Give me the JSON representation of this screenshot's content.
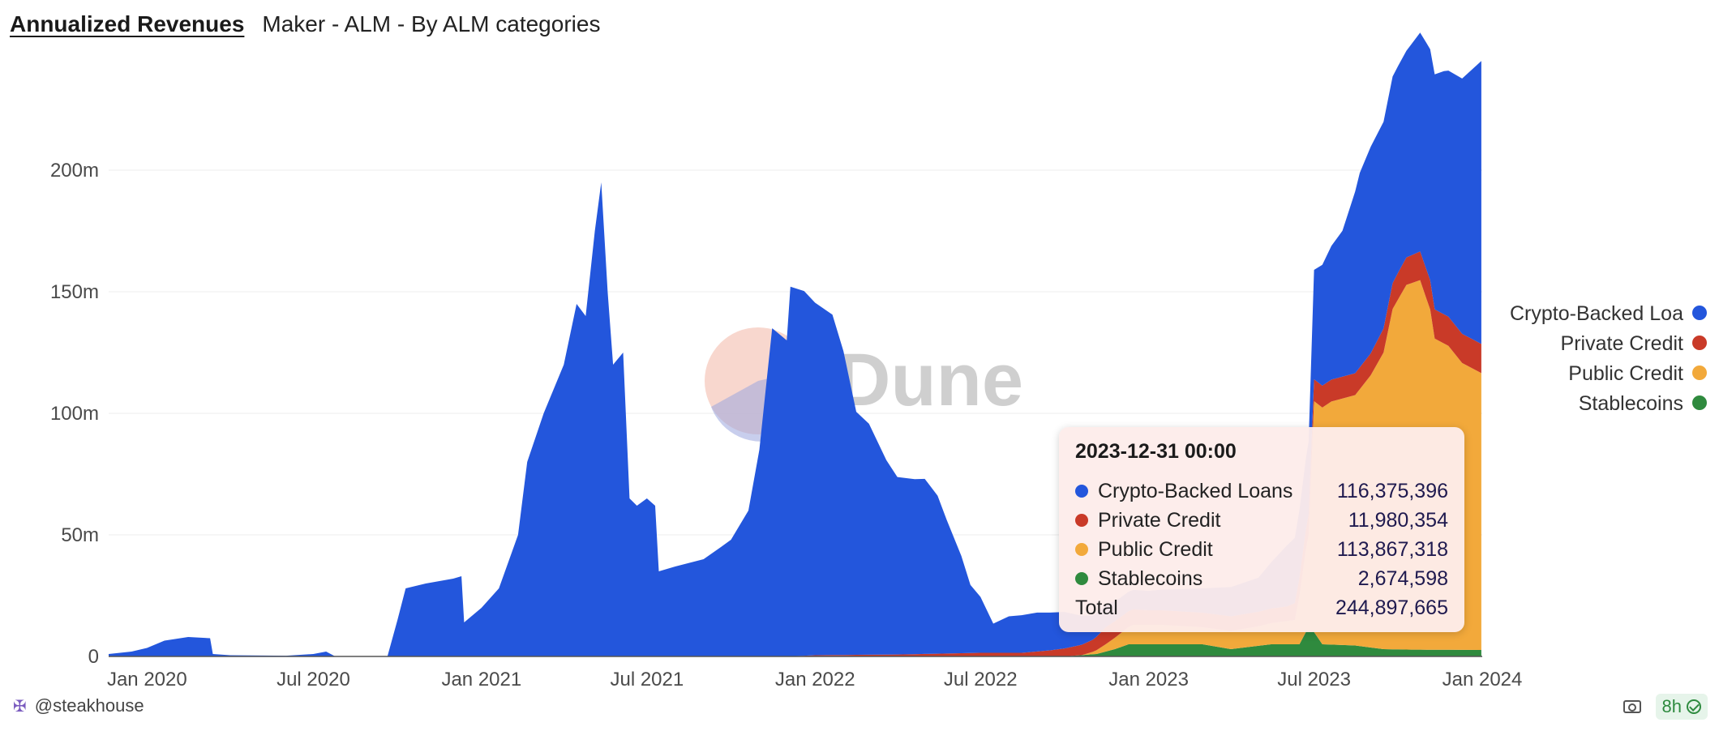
{
  "header": {
    "title": "Annualized Revenues",
    "subtitle": "Maker - ALM - By ALM categories"
  },
  "watermark": {
    "text": "Dune"
  },
  "colors": {
    "crypto": "#2356dc",
    "private": "#c93a28",
    "public": "#f2a93b",
    "stable": "#2f8a3e"
  },
  "chart_data": {
    "type": "area",
    "stacked": true,
    "x_unit": "date",
    "xlim": [
      "2019-11-20",
      "2024-01-01"
    ],
    "ylim": [
      0,
      250000000
    ],
    "y_ticks": [
      {
        "value": 0,
        "label": "0"
      },
      {
        "value": 50000000,
        "label": "50m"
      },
      {
        "value": 100000000,
        "label": "100m"
      },
      {
        "value": 150000000,
        "label": "150m"
      },
      {
        "value": 200000000,
        "label": "200m"
      }
    ],
    "x_ticks": [
      {
        "value": "2020-01-01",
        "label": "Jan 2020"
      },
      {
        "value": "2020-07-01",
        "label": "Jul 2020"
      },
      {
        "value": "2021-01-01",
        "label": "Jan 2021"
      },
      {
        "value": "2021-07-01",
        "label": "Jul 2021"
      },
      {
        "value": "2022-01-01",
        "label": "Jan 2022"
      },
      {
        "value": "2022-07-01",
        "label": "Jul 2022"
      },
      {
        "value": "2023-01-01",
        "label": "Jan 2023"
      },
      {
        "value": "2023-07-01",
        "label": "Jul 2023"
      },
      {
        "value": "2024-01-01",
        "label": "Jan 2024"
      }
    ],
    "grid": true,
    "legend_position": "right",
    "series": [
      {
        "name": "Stablecoins",
        "color": "#2f8a3e",
        "points": [
          [
            "2019-11-20",
            0
          ],
          [
            "2022-10-01",
            0
          ],
          [
            "2022-11-05",
            1000000
          ],
          [
            "2022-11-25",
            3000000
          ],
          [
            "2022-12-10",
            5000000
          ],
          [
            "2023-03-01",
            5000000
          ],
          [
            "2023-04-01",
            3000000
          ],
          [
            "2023-05-15",
            5000000
          ],
          [
            "2023-06-15",
            5000000
          ],
          [
            "2023-06-22",
            10000000
          ],
          [
            "2023-07-01",
            10000000
          ],
          [
            "2023-07-10",
            5000000
          ],
          [
            "2023-08-15",
            4500000
          ],
          [
            "2023-09-15",
            3000000
          ],
          [
            "2023-10-15",
            2800000
          ],
          [
            "2023-12-31",
            2674598
          ]
        ]
      },
      {
        "name": "Public Credit",
        "color": "#f2a93b",
        "points": [
          [
            "2019-11-20",
            0
          ],
          [
            "2022-10-20",
            0
          ],
          [
            "2022-11-01",
            1000000
          ],
          [
            "2022-11-15",
            3000000
          ],
          [
            "2022-12-15",
            8000000
          ],
          [
            "2023-01-15",
            8000000
          ],
          [
            "2023-03-01",
            7000000
          ],
          [
            "2023-05-01",
            8000000
          ],
          [
            "2023-06-10",
            10000000
          ],
          [
            "2023-06-25",
            40000000
          ],
          [
            "2023-07-01",
            95000000
          ],
          [
            "2023-07-20",
            100000000
          ],
          [
            "2023-08-15",
            103000000
          ],
          [
            "2023-09-01",
            112000000
          ],
          [
            "2023-09-15",
            122000000
          ],
          [
            "2023-09-25",
            140000000
          ],
          [
            "2023-10-10",
            150000000
          ],
          [
            "2023-10-25",
            152000000
          ],
          [
            "2023-11-05",
            140000000
          ],
          [
            "2023-11-10",
            128000000
          ],
          [
            "2023-11-25",
            125000000
          ],
          [
            "2023-12-10",
            118000000
          ],
          [
            "2023-12-31",
            113867318
          ]
        ]
      },
      {
        "name": "Private Credit",
        "color": "#c93a28",
        "points": [
          [
            "2019-11-20",
            0
          ],
          [
            "2021-12-01",
            0
          ],
          [
            "2022-01-01",
            500000
          ],
          [
            "2022-04-01",
            800000
          ],
          [
            "2022-07-01",
            1500000
          ],
          [
            "2022-08-15",
            1500000
          ],
          [
            "2022-09-15",
            2500000
          ],
          [
            "2022-10-15",
            4000000
          ],
          [
            "2022-11-01",
            5000000
          ],
          [
            "2022-11-15",
            7000000
          ],
          [
            "2023-01-01",
            6000000
          ],
          [
            "2023-06-01",
            6000000
          ],
          [
            "2023-07-01",
            9000000
          ],
          [
            "2023-08-01",
            9000000
          ],
          [
            "2023-09-01",
            9000000
          ],
          [
            "2023-10-01",
            11000000
          ],
          [
            "2023-11-01",
            12000000
          ],
          [
            "2023-12-31",
            11980354
          ]
        ]
      },
      {
        "name": "Crypto-Backed Loans",
        "color": "#2356dc",
        "points": [
          [
            "2019-11-20",
            1000000
          ],
          [
            "2019-12-15",
            2000000
          ],
          [
            "2020-01-01",
            3500000
          ],
          [
            "2020-01-20",
            6500000
          ],
          [
            "2020-02-15",
            8000000
          ],
          [
            "2020-03-10",
            7500000
          ],
          [
            "2020-03-13",
            1000000
          ],
          [
            "2020-04-01",
            500000
          ],
          [
            "2020-06-01",
            300000
          ],
          [
            "2020-07-01",
            1000000
          ],
          [
            "2020-07-15",
            2000000
          ],
          [
            "2020-07-25",
            0
          ],
          [
            "2020-09-20",
            0
          ],
          [
            "2020-10-01",
            15000000
          ],
          [
            "2020-10-10",
            28000000
          ],
          [
            "2020-11-01",
            30000000
          ],
          [
            "2020-12-01",
            32000000
          ],
          [
            "2020-12-10",
            33000000
          ],
          [
            "2020-12-13",
            14000000
          ],
          [
            "2021-01-01",
            20000000
          ],
          [
            "2021-01-20",
            28000000
          ],
          [
            "2021-02-10",
            50000000
          ],
          [
            "2021-02-20",
            80000000
          ],
          [
            "2021-03-10",
            100000000
          ],
          [
            "2021-04-01",
            120000000
          ],
          [
            "2021-04-15",
            145000000
          ],
          [
            "2021-04-25",
            140000000
          ],
          [
            "2021-05-05",
            175000000
          ],
          [
            "2021-05-12",
            195000000
          ],
          [
            "2021-05-19",
            150000000
          ],
          [
            "2021-05-25",
            120000000
          ],
          [
            "2021-06-05",
            125000000
          ],
          [
            "2021-06-12",
            65000000
          ],
          [
            "2021-06-20",
            62000000
          ],
          [
            "2021-07-01",
            65000000
          ],
          [
            "2021-07-10",
            62000000
          ],
          [
            "2021-07-14",
            35000000
          ],
          [
            "2021-08-01",
            37000000
          ],
          [
            "2021-09-01",
            40000000
          ],
          [
            "2021-09-20",
            45000000
          ],
          [
            "2021-10-01",
            48000000
          ],
          [
            "2021-10-20",
            60000000
          ],
          [
            "2021-11-01",
            85000000
          ],
          [
            "2021-11-15",
            135000000
          ],
          [
            "2021-12-01",
            130000000
          ],
          [
            "2021-12-05",
            152000000
          ],
          [
            "2021-12-20",
            150000000
          ],
          [
            "2022-01-01",
            145000000
          ],
          [
            "2022-01-20",
            140000000
          ],
          [
            "2022-02-01",
            125000000
          ],
          [
            "2022-02-15",
            100000000
          ],
          [
            "2022-03-01",
            95000000
          ],
          [
            "2022-03-20",
            80000000
          ],
          [
            "2022-04-01",
            73000000
          ],
          [
            "2022-04-20",
            72000000
          ],
          [
            "2022-05-01",
            72000000
          ],
          [
            "2022-05-15",
            65000000
          ],
          [
            "2022-05-25",
            55000000
          ],
          [
            "2022-06-10",
            40000000
          ],
          [
            "2022-06-20",
            28000000
          ],
          [
            "2022-07-01",
            23000000
          ],
          [
            "2022-07-15",
            12000000
          ],
          [
            "2022-08-01",
            15000000
          ],
          [
            "2022-09-01",
            16000000
          ],
          [
            "2022-10-01",
            15000000
          ],
          [
            "2022-11-01",
            10000000
          ],
          [
            "2022-12-01",
            8000000
          ],
          [
            "2023-01-01",
            8000000
          ],
          [
            "2023-03-01",
            10000000
          ],
          [
            "2023-05-01",
            14000000
          ],
          [
            "2023-06-01",
            25000000
          ],
          [
            "2023-06-25",
            30000000
          ],
          [
            "2023-07-01",
            45000000
          ],
          [
            "2023-07-20",
            55000000
          ],
          [
            "2023-08-01",
            60000000
          ],
          [
            "2023-08-20",
            80000000
          ],
          [
            "2023-09-01",
            85000000
          ],
          [
            "2023-09-20",
            85000000
          ],
          [
            "2023-10-10",
            85000000
          ],
          [
            "2023-10-25",
            90000000
          ],
          [
            "2023-11-05",
            95000000
          ],
          [
            "2023-11-20",
            100000000
          ],
          [
            "2023-12-10",
            105000000
          ],
          [
            "2023-12-31",
            116375396
          ]
        ]
      }
    ],
    "legend": [
      {
        "label": "Crypto-Backed Loa",
        "color": "#2356dc"
      },
      {
        "label": "Private Credit",
        "color": "#c93a28"
      },
      {
        "label": "Public Credit",
        "color": "#f2a93b"
      },
      {
        "label": "Stablecoins",
        "color": "#2f8a3e"
      }
    ]
  },
  "tooltip": {
    "date": "2023-12-31 00:00",
    "rows": [
      {
        "name": "Crypto-Backed Loans",
        "value": "116,375,396",
        "color": "#2356dc"
      },
      {
        "name": "Private Credit",
        "value": "11,980,354",
        "color": "#c93a28"
      },
      {
        "name": "Public Credit",
        "value": "113,867,318",
        "color": "#f2a93b"
      },
      {
        "name": "Stablecoins",
        "value": "2,674,598",
        "color": "#2f8a3e"
      }
    ],
    "total_label": "Total",
    "total_value": "244,897,665"
  },
  "footer": {
    "author": "@steakhouse",
    "refresh_badge": "8h"
  }
}
